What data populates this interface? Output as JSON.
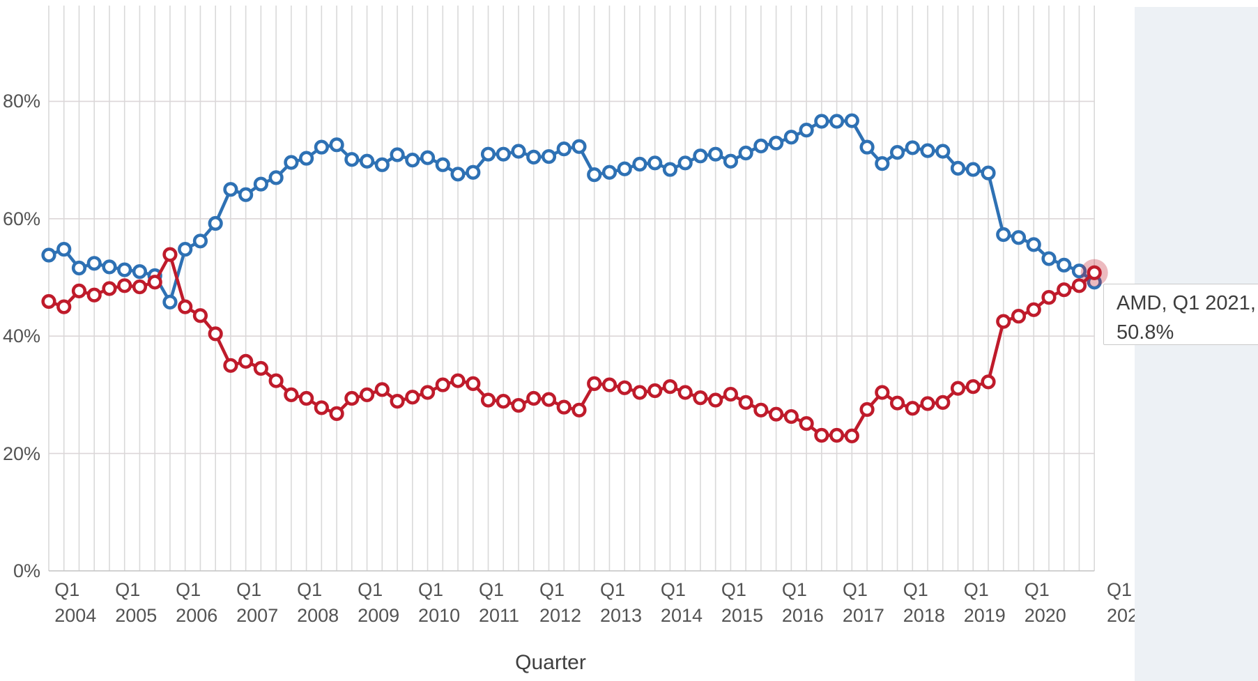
{
  "chart_data": {
    "type": "line",
    "title": "",
    "xlabel": "Quarter",
    "ylabel": "",
    "x_period_start": "Q4 2003",
    "x_period_end": "Q1 2021",
    "x_tick_quarter_text": "Q1",
    "x_tick_years": [
      "2004",
      "2005",
      "2006",
      "2007",
      "2008",
      "2009",
      "2010",
      "2011",
      "2012",
      "2013",
      "2014",
      "2015",
      "2016",
      "2017",
      "2018",
      "2019",
      "2020",
      "202"
    ],
    "y_ticks": [
      {
        "label": "0%",
        "value": 0
      },
      {
        "label": "20%",
        "value": 20
      },
      {
        "label": "40%",
        "value": 40
      },
      {
        "label": "60%",
        "value": 60
      },
      {
        "label": "80%",
        "value": 80
      }
    ],
    "ylim": [
      0,
      96
    ],
    "grid": true,
    "legend_position": "none",
    "series": [
      {
        "name": "",
        "color": "#2e71b4",
        "marker": "open-circle",
        "values": [
          53.8,
          54.8,
          51.6,
          52.4,
          51.8,
          51.3,
          51.0,
          50.3,
          45.8,
          54.8,
          56.2,
          59.2,
          65.0,
          64.1,
          65.9,
          67.0,
          69.6,
          70.3,
          72.2,
          72.6,
          70.1,
          69.8,
          69.2,
          70.9,
          70.0,
          70.4,
          69.2,
          67.6,
          67.9,
          71.0,
          71.0,
          71.5,
          70.5,
          70.6,
          71.9,
          72.3,
          67.5,
          67.9,
          68.5,
          69.3,
          69.5,
          68.4,
          69.5,
          70.7,
          71.0,
          69.8,
          71.2,
          72.4,
          72.9,
          73.9,
          75.1,
          76.6,
          76.6,
          76.7,
          72.2,
          69.4,
          71.3,
          72.1,
          71.6,
          71.5,
          68.6,
          68.4,
          67.8,
          57.3,
          56.8,
          55.6,
          53.2,
          52.1,
          51.1,
          49.2
        ]
      },
      {
        "name": "AMD",
        "color": "#bf1b2b",
        "marker": "open-circle",
        "values": [
          45.9,
          45.0,
          47.7,
          47.0,
          48.1,
          48.6,
          48.4,
          49.2,
          53.9,
          45.0,
          43.5,
          40.4,
          35.0,
          35.7,
          34.5,
          32.4,
          30.0,
          29.4,
          27.8,
          26.8,
          29.4,
          30.0,
          30.9,
          28.9,
          29.6,
          30.4,
          31.7,
          32.4,
          31.9,
          29.1,
          28.9,
          28.2,
          29.4,
          29.2,
          27.9,
          27.4,
          31.9,
          31.7,
          31.2,
          30.4,
          30.7,
          31.4,
          30.4,
          29.5,
          29.1,
          30.1,
          28.7,
          27.4,
          26.7,
          26.3,
          25.1,
          23.1,
          23.1,
          23.0,
          27.5,
          30.4,
          28.6,
          27.7,
          28.5,
          28.7,
          31.1,
          31.4,
          32.2,
          42.5,
          43.4,
          44.5,
          46.6,
          47.9,
          48.6,
          50.8
        ]
      }
    ],
    "highlight": {
      "series_index": 1,
      "point_index": 69,
      "halo_color": "rgba(191,27,43,0.30)"
    }
  },
  "tooltip": {
    "line1": "AMD, Q1 2021,",
    "line2": "50.8%"
  },
  "axis_titles": {
    "x": "Quarter"
  },
  "colors": {
    "vertical_grid": "#d9d9d9",
    "horizontal_grid": "#dcd6d8",
    "axis_line": "#c4c4c4",
    "panel": "#edf1f5",
    "tick_text": "#535353"
  }
}
